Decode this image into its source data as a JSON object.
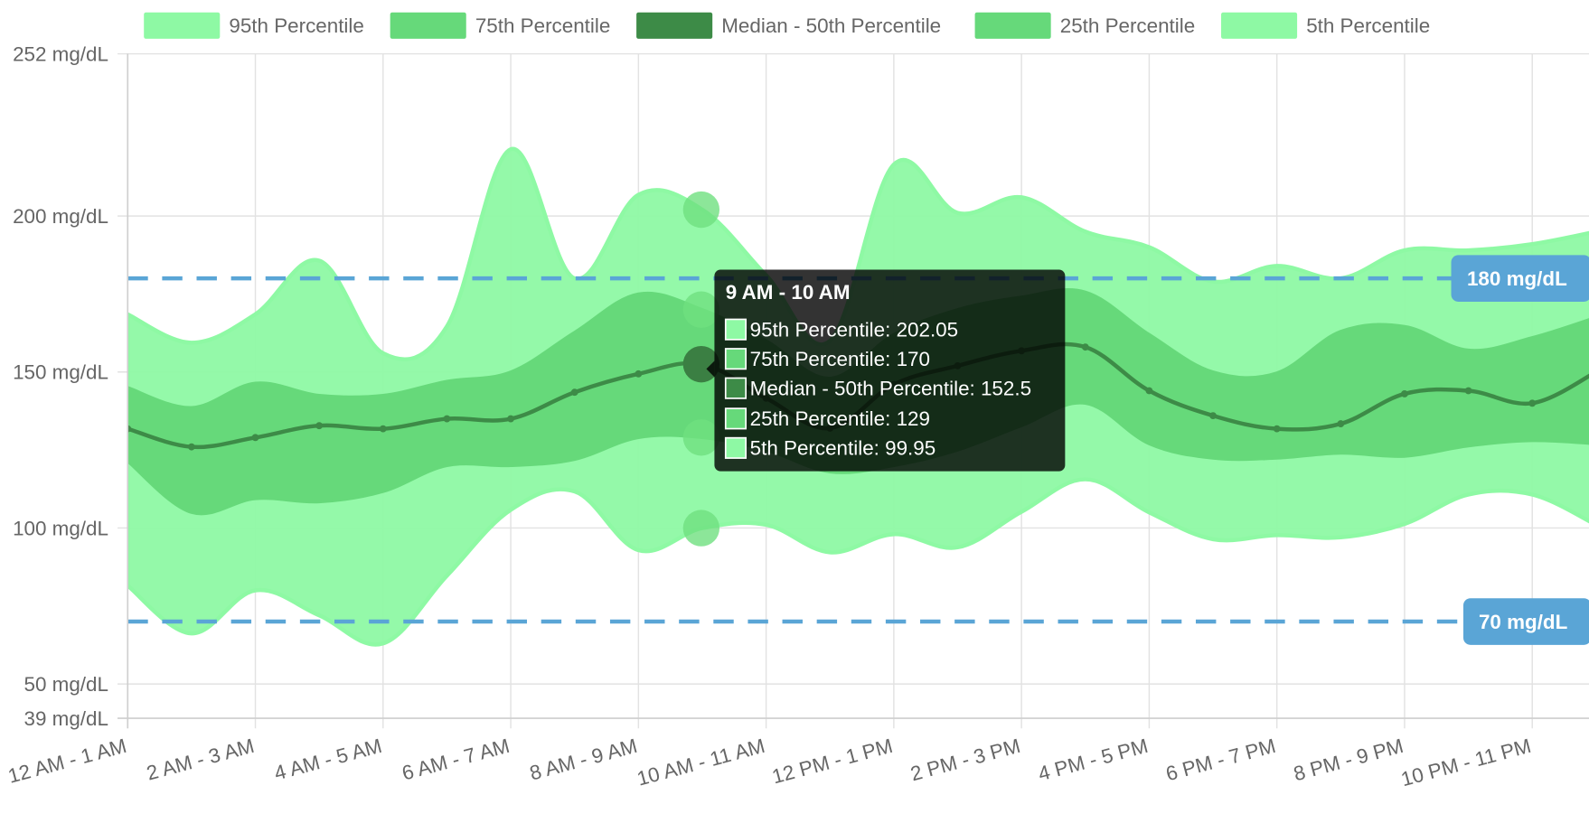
{
  "chart_data": {
    "type": "area",
    "title": "",
    "xlabel": "",
    "ylabel": "",
    "ylim": [
      39,
      252
    ],
    "y_ticks": [
      252,
      200,
      150,
      100,
      50,
      39
    ],
    "y_tick_labels": [
      "252 mg/dL",
      "200 mg/dL",
      "150 mg/dL",
      "100 mg/dL",
      "50 mg/dL",
      "39 mg/dL"
    ],
    "x": [
      0,
      1,
      2,
      3,
      4,
      5,
      6,
      7,
      8,
      9,
      10,
      11,
      12,
      13,
      14,
      15,
      16,
      17,
      18,
      19,
      20,
      21,
      22,
      23
    ],
    "tick_labels": [
      "12 AM - 1 AM",
      "2 AM - 3 AM",
      "4 AM - 5 AM",
      "6 AM - 7 AM",
      "8 AM - 9 AM",
      "10 AM - 11 AM",
      "12 PM - 1 PM",
      "2 PM - 3 PM",
      "4 PM - 5 PM",
      "6 PM - 7 PM",
      "8 PM - 9 PM",
      "10 PM - 11 PM"
    ],
    "grid": true,
    "legend_position": "top",
    "colors": {
      "outer": "#8ef9a4",
      "inner": "#66d97a",
      "median": "#3d8b47",
      "target": "#5aa5d6"
    },
    "series": [
      {
        "name": "95th Percentile",
        "values": [
          168.5,
          159.4,
          168.5,
          185.7,
          156,
          164.6,
          221.4,
          180,
          206.8,
          202.05,
          181,
          160,
          216.5,
          201,
          206,
          195,
          190,
          179,
          184,
          180,
          189,
          189,
          191,
          195
        ]
      },
      {
        "name": "75th Percentile",
        "values": [
          145,
          138.6,
          146.4,
          142.5,
          142.5,
          147,
          150,
          162.7,
          175,
          170,
          160,
          148,
          162,
          170,
          174,
          175.6,
          162,
          150,
          149.7,
          163,
          164.6,
          157,
          161,
          167.5
        ]
      },
      {
        "name": "Median - 50th Percentile",
        "values": [
          131.8,
          126,
          129,
          132.8,
          131.8,
          135,
          135,
          143.5,
          149.4,
          152.5,
          141.6,
          132,
          146,
          152,
          156.8,
          158,
          144,
          136,
          131.8,
          133.4,
          143,
          144,
          140,
          150
        ]
      },
      {
        "name": "25th Percentile",
        "values": [
          121.4,
          105,
          109.4,
          108.4,
          111.7,
          120,
          120,
          122,
          129,
          129,
          125,
          118,
          120,
          125,
          132.8,
          140,
          127,
          122.4,
          122.4,
          124,
          123,
          126.3,
          128,
          127
        ]
      },
      {
        "name": "5th Percentile",
        "values": [
          81.5,
          66.2,
          80,
          72,
          63,
          84.7,
          105.8,
          111.7,
          92.9,
          99.95,
          101,
          92.2,
          98,
          93.8,
          105.2,
          115.6,
          105,
          96.4,
          97.7,
          97,
          101.3,
          110.7,
          110.7,
          101
        ]
      }
    ],
    "annotations": [
      {
        "value": 180,
        "label": "180 mg/dL"
      },
      {
        "value": 70,
        "label": "70 mg/dL"
      }
    ],
    "tooltip": {
      "index": 9,
      "title": "9 AM - 10 AM",
      "rows": [
        "95th Percentile: 202.05",
        "75th Percentile: 170",
        "Median - 50th Percentile: 152.5",
        "25th Percentile: 129",
        "5th Percentile: 99.95"
      ]
    }
  }
}
